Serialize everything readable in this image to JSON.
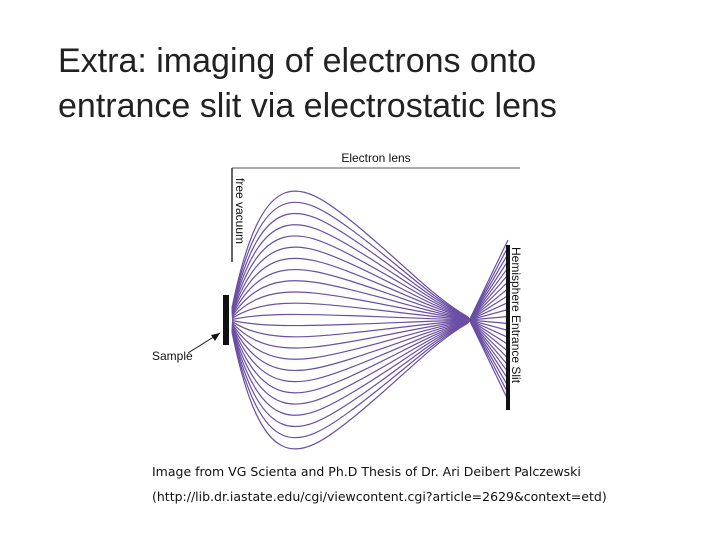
{
  "title": {
    "lines": [
      "Extra: imaging of electrons onto",
      "entrance slit via electrostatic lens"
    ]
  },
  "diagram": {
    "lens_label": "Electron lens",
    "vacuum_label": "free vacuum",
    "slit_label": "Hemisphere Entrance Slit",
    "sample_label": "Sample"
  },
  "caption": {
    "lines": [
      "Image from VG Scienta and Ph.D Thesis of Dr. Ari Deibert Palczewski",
      "(http://lib.dr.iastate.edu/cgi/viewcontent.cgi?article=2629&context=etd)"
    ]
  }
}
